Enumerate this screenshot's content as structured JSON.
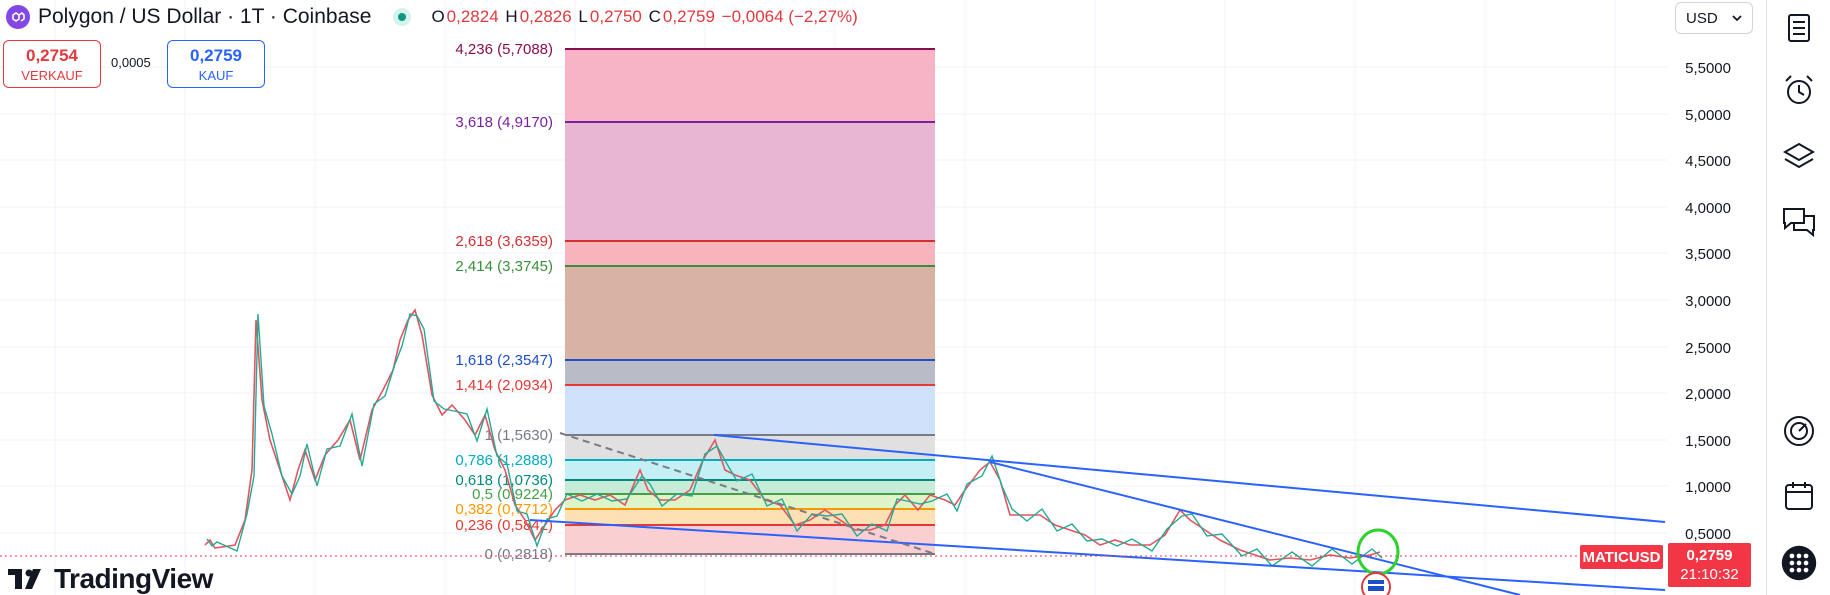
{
  "header": {
    "symbol_title": "Polygon / US Dollar · 1T · Coinbase",
    "ohlc": {
      "o_key": "O",
      "o_val": "0,2824",
      "h_key": "H",
      "h_val": "0,2826",
      "l_key": "L",
      "l_val": "0,2750",
      "c_key": "C",
      "c_val": "0,2759",
      "change": "−0,0064 (−2,27%)"
    }
  },
  "trade": {
    "sell_price": "0,2754",
    "sell_label": "VERKAUF",
    "spread": "0,0005",
    "buy_price": "0,2759",
    "buy_label": "KAUF"
  },
  "currency": {
    "selected": "USD"
  },
  "logo": {
    "text": "TradingView"
  },
  "price_tag": {
    "symbol": "MATICUSD",
    "price": "0,2759",
    "countdown": "21:10:32"
  },
  "right_toolbar": [
    "watchlist-icon",
    "alert-clock-icon",
    "layers-icon",
    "chat-icon",
    "gauge-icon",
    "calendar-icon",
    "apps-grid-icon"
  ],
  "chart_data": {
    "type": "line",
    "price_axis": [
      "5,5000",
      "5,0000",
      "4,5000",
      "4,0000",
      "3,5000",
      "3,0000",
      "2,5000",
      "2,0000",
      "1,5000",
      "1,0000",
      "0,5000"
    ],
    "fib_levels": [
      {
        "label": "4,236 (5,7088)",
        "color": "#880e4f",
        "fill": "#f7b4c6"
      },
      {
        "label": "3,618 (4,9170)",
        "color": "#7b1fa2",
        "fill": "#e8b6d3"
      },
      {
        "label": "2,618 (3,6359)",
        "color": "#d32f2f",
        "fill": "#f8b4bc"
      },
      {
        "label": "2,414 (3,3745)",
        "color": "#388e3c",
        "fill": "#d8b3a3"
      },
      {
        "label": "1,618 (2,3547)",
        "color": "#1e4fc7",
        "fill": "#b9bcc7"
      },
      {
        "label": "1,414 (2,0934)",
        "color": "#e53935",
        "fill": "#cfe0fb"
      },
      {
        "label": "1 (1,5630)",
        "color": "#787b86",
        "fill": "#e0e0e0"
      },
      {
        "label": "0,786 (1,2888)",
        "color": "#00acc1",
        "fill": "#c4f0f5"
      },
      {
        "label": "0,618 (1,0736)",
        "color": "#00897b",
        "fill": "#c6ecd9"
      },
      {
        "label": "0,5 (0,9224)",
        "color": "#43a047",
        "fill": "#dff3c8"
      },
      {
        "label": "0,382 (0,7712)",
        "color": "#ff9800",
        "fill": "#fde0b3"
      },
      {
        "label": "0,236 (0,5842)",
        "color": "#e53935",
        "fill": "#f9cfd1"
      },
      {
        "label": "0 (0,2818)",
        "color": "#787b86",
        "fill": null
      }
    ]
  }
}
